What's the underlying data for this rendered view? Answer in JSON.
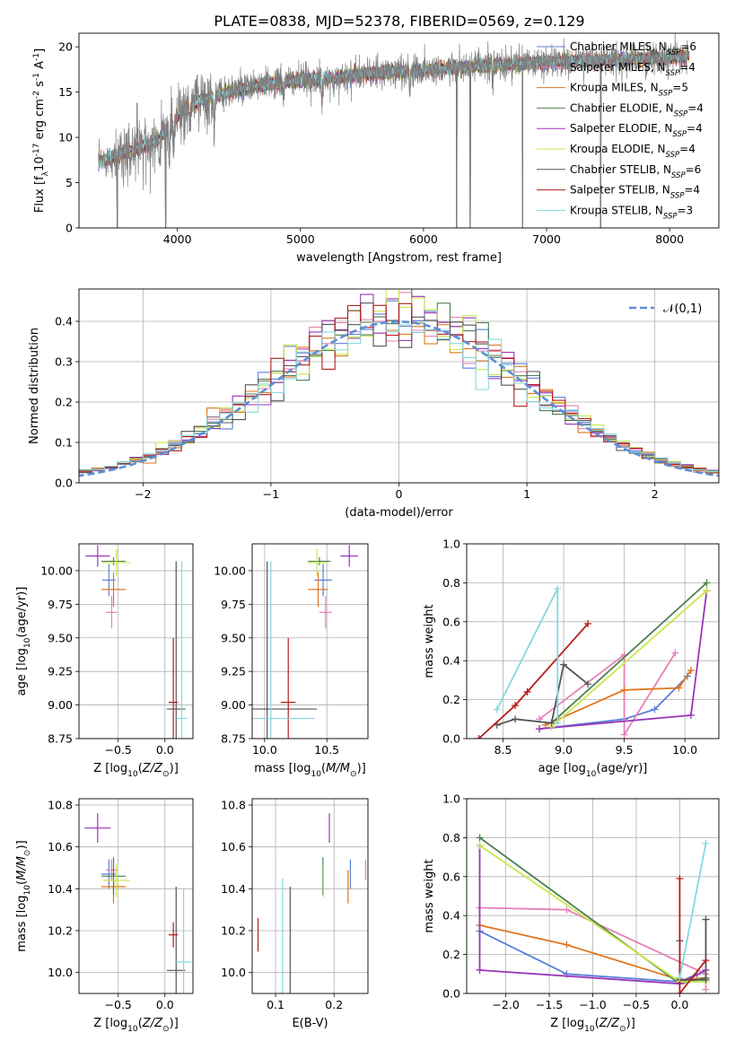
{
  "figure": {
    "title": "PLATE=0838, MJD=52378, FIBERID=0569, z=0.129"
  },
  "colors": {
    "Chabrier MILES": "#5b7fd6",
    "Salpeter MILES": "#e680b8",
    "Kroupa MILES": "#e0761f",
    "Chabrier ELODIE": "#4f7f4f",
    "Salpeter ELODIE": "#9a35b8",
    "Kroupa ELODIE": "#c8e84b",
    "Chabrier STELIB": "#555555",
    "Salpeter STELIB": "#b51c1c",
    "Kroupa STELIB": "#85d8de",
    "spectrum_data": "#7f7f7f",
    "normal_curve": "#5b8fd6"
  },
  "chart_data": [
    {
      "id": "spectrum",
      "type": "line",
      "title": "PLATE=0838, MJD=52378, FIBERID=0569, z=0.129",
      "xlabel": "wavelength [Angstrom, rest frame]",
      "ylabel": "Flux [f$_\\lambda$10$^{-17}$ erg cm$^{-2}$ s$^{-1}$ A$^{-1}$]",
      "xlim": [
        3200,
        8400
      ],
      "ylim": [
        0,
        21.5
      ],
      "xticks": [
        4000,
        5000,
        6000,
        7000,
        8000
      ],
      "yticks": [
        0,
        5,
        10,
        15,
        20
      ],
      "grid": false,
      "legend_position": "top-right",
      "legend": [
        {
          "name": "Chabrier MILES",
          "nssp": "6"
        },
        {
          "name": "Salpeter MILES",
          "nssp": "4"
        },
        {
          "name": "Kroupa MILES",
          "nssp": "5"
        },
        {
          "name": "Chabrier ELODIE",
          "nssp": "4"
        },
        {
          "name": "Salpeter ELODIE",
          "nssp": "4"
        },
        {
          "name": "Kroupa ELODIE",
          "nssp": "4"
        },
        {
          "name": "Chabrier STELIB",
          "nssp": "6"
        },
        {
          "name": "Salpeter STELIB",
          "nssp": "4"
        },
        {
          "name": "Kroupa STELIB",
          "nssp": "3"
        }
      ],
      "continuum": [
        [
          3360,
          7.3
        ],
        [
          3500,
          8.0
        ],
        [
          3700,
          8.8
        ],
        [
          3850,
          9.8
        ],
        [
          3950,
          11.5
        ],
        [
          4050,
          13.0
        ],
        [
          4200,
          14.2
        ],
        [
          4400,
          15.0
        ],
        [
          4700,
          15.8
        ],
        [
          5000,
          16.3
        ],
        [
          5400,
          16.8
        ],
        [
          5800,
          17.3
        ],
        [
          6200,
          17.6
        ],
        [
          6600,
          18.0
        ],
        [
          7000,
          18.3
        ],
        [
          7400,
          18.5
        ],
        [
          7800,
          18.7
        ],
        [
          8150,
          18.9
        ]
      ],
      "absorption_lines": [
        [
          3934,
          4.0
        ],
        [
          3969,
          3.5
        ],
        [
          4102,
          2.0
        ],
        [
          4300,
          3.0
        ],
        [
          4861,
          1.5
        ],
        [
          5175,
          2.5
        ],
        [
          5270,
          1.5
        ],
        [
          5890,
          2.5
        ],
        [
          6563,
          1.5
        ]
      ],
      "masked_drops": [
        3510,
        3905,
        6270,
        6380,
        6805,
        7440
      ]
    },
    {
      "id": "residuals",
      "type": "histogram",
      "xlabel": "(data-model)/error",
      "ylabel": "Normed distribution",
      "xlim": [
        -2.5,
        2.5
      ],
      "ylim": [
        0,
        0.48
      ],
      "xticks": [
        -2,
        -1,
        0,
        1,
        2
      ],
      "yticks": [
        0.0,
        0.1,
        0.2,
        0.3,
        0.4
      ],
      "grid": true,
      "legend_position": "top-right",
      "legend": [
        {
          "name": "$\\mathcal{N}(0,1)$"
        }
      ],
      "bin_width": 0.1
    },
    {
      "id": "age-Z",
      "type": "errorbar",
      "xlabel": "Z [log$_{10}$($Z/Z_\\odot$)]",
      "ylabel": "age  [log$_{10}$($age/yr$)]",
      "xlim": [
        -0.92,
        0.3
      ],
      "ylim": [
        8.75,
        10.2
      ],
      "xticks": [
        -0.5,
        0.0
      ],
      "yticks": [
        8.75,
        9.0,
        9.25,
        9.5,
        9.75,
        10.0
      ],
      "grid": true,
      "points": [
        {
          "series": "Chabrier MILES",
          "x": -0.6,
          "xerr": 0.07,
          "y": 9.93,
          "yerr": 0.12
        },
        {
          "series": "Salpeter MILES",
          "x": -0.57,
          "xerr": 0.06,
          "y": 9.69,
          "yerr": 0.12
        },
        {
          "series": "Kroupa MILES",
          "x": -0.55,
          "xerr": 0.13,
          "y": 9.86,
          "yerr": 0.13
        },
        {
          "series": "Chabrier ELODIE",
          "x": -0.55,
          "xerr": 0.13,
          "y": 10.07,
          "yerr": 0.03
        },
        {
          "series": "Salpeter ELODIE",
          "x": -0.72,
          "xerr": 0.13,
          "y": 10.11,
          "yerr": 0.08
        },
        {
          "series": "Kroupa ELODIE",
          "x": -0.52,
          "xerr": 0.15,
          "y": 10.06,
          "yerr": 0.1
        },
        {
          "series": "Chabrier STELIB",
          "x": 0.12,
          "xerr": 0.1,
          "y": 8.97,
          "yerr": 1.1
        },
        {
          "series": "Salpeter STELIB",
          "x": 0.09,
          "xerr": 0.05,
          "y": 9.02,
          "yerr": 0.48
        },
        {
          "series": "Kroupa STELIB",
          "x": 0.18,
          "xerr": 0.06,
          "y": 8.9,
          "yerr": 1.17
        }
      ]
    },
    {
      "id": "age-mass",
      "type": "errorbar",
      "xlabel": "mass [log$_{10}$($M/M_\\odot$)]",
      "ylabel": "",
      "xlim": [
        9.9,
        10.83
      ],
      "ylim": [
        8.75,
        10.2
      ],
      "xticks": [
        10.0,
        10.5
      ],
      "yticks": [
        8.75,
        9.0,
        9.25,
        9.5,
        9.75,
        10.0
      ],
      "grid": true,
      "points": [
        {
          "series": "Chabrier MILES",
          "x": 10.47,
          "xerr": 0.07,
          "y": 9.93,
          "yerr": 0.12
        },
        {
          "series": "Salpeter MILES",
          "x": 10.49,
          "xerr": 0.05,
          "y": 9.69,
          "yerr": 0.12
        },
        {
          "series": "Kroupa MILES",
          "x": 10.43,
          "xerr": 0.08,
          "y": 9.86,
          "yerr": 0.13
        },
        {
          "series": "Chabrier ELODIE",
          "x": 10.44,
          "xerr": 0.09,
          "y": 10.07,
          "yerr": 0.03
        },
        {
          "series": "Salpeter ELODIE",
          "x": 10.68,
          "xerr": 0.07,
          "y": 10.11,
          "yerr": 0.08
        },
        {
          "series": "Kroupa ELODIE",
          "x": 10.42,
          "xerr": 0.08,
          "y": 10.06,
          "yerr": 0.1
        },
        {
          "series": "Chabrier STELIB",
          "x": 10.02,
          "xerr": 0.4,
          "y": 8.97,
          "yerr": 1.1
        },
        {
          "series": "Salpeter STELIB",
          "x": 10.19,
          "xerr": 0.06,
          "y": 9.02,
          "yerr": 0.48
        },
        {
          "series": "Kroupa STELIB",
          "x": 10.05,
          "xerr": 0.35,
          "y": 8.9,
          "yerr": 1.17
        }
      ]
    },
    {
      "id": "weight-age",
      "type": "line",
      "xlabel": "age  [log$_{10}$($age/yr$)]",
      "ylabel": "mass weight",
      "xlim": [
        8.2,
        10.28
      ],
      "ylim": [
        0.0,
        1.0
      ],
      "xticks": [
        8.5,
        9.0,
        9.5,
        10.0
      ],
      "yticks": [
        0.0,
        0.2,
        0.4,
        0.6,
        0.8,
        1.0
      ],
      "grid": true,
      "series": [
        {
          "name": "Chabrier MILES",
          "x": [
            8.8,
            9.5,
            9.75,
            10.02
          ],
          "y": [
            0.05,
            0.1,
            0.15,
            0.32
          ]
        },
        {
          "name": "Salpeter MILES",
          "x": [
            8.8,
            9.5,
            9.5,
            9.92
          ],
          "y": [
            0.1,
            0.43,
            0.02,
            0.44
          ]
        },
        {
          "name": "Kroupa MILES",
          "x": [
            8.85,
            9.5,
            9.95,
            10.05
          ],
          "y": [
            0.07,
            0.25,
            0.26,
            0.35
          ]
        },
        {
          "name": "Chabrier ELODIE",
          "x": [
            8.9,
            10.18
          ],
          "y": [
            0.08,
            0.8
          ]
        },
        {
          "name": "Salpeter ELODIE",
          "x": [
            8.8,
            10.05,
            10.18
          ],
          "y": [
            0.05,
            0.12,
            0.76
          ]
        },
        {
          "name": "Kroupa ELODIE",
          "x": [
            8.9,
            10.18
          ],
          "y": [
            0.06,
            0.76
          ]
        },
        {
          "name": "Chabrier STELIB",
          "x": [
            8.45,
            8.6,
            8.9,
            9.0,
            9.2
          ],
          "y": [
            0.07,
            0.1,
            0.08,
            0.38,
            0.28
          ]
        },
        {
          "name": "Salpeter STELIB",
          "x": [
            8.3,
            8.6,
            8.7,
            9.2
          ],
          "y": [
            0.0,
            0.17,
            0.24,
            0.59
          ]
        },
        {
          "name": "Kroupa STELIB",
          "x": [
            8.45,
            8.95,
            8.95
          ],
          "y": [
            0.15,
            0.77,
            0.08
          ]
        }
      ]
    },
    {
      "id": "mass-Z",
      "type": "errorbar",
      "xlabel": "Z [log$_{10}$($Z/Z_\\odot$)]",
      "ylabel": "mass [log$_{10}$($M/M_\\odot$)]",
      "xlim": [
        -0.92,
        0.3
      ],
      "ylim": [
        9.9,
        10.83
      ],
      "xticks": [
        -0.5,
        0.0
      ],
      "yticks": [
        10.0,
        10.2,
        10.4,
        10.6,
        10.8
      ],
      "grid": true,
      "points": [
        {
          "series": "Chabrier MILES",
          "x": -0.6,
          "xerr": 0.08,
          "y": 10.47,
          "yerr": 0.07
        },
        {
          "series": "Salpeter MILES",
          "x": -0.57,
          "xerr": 0.06,
          "y": 10.49,
          "yerr": 0.05
        },
        {
          "series": "Kroupa MILES",
          "x": -0.55,
          "xerr": 0.13,
          "y": 10.41,
          "yerr": 0.08
        },
        {
          "series": "Chabrier ELODIE",
          "x": -0.55,
          "xerr": 0.13,
          "y": 10.46,
          "yerr": 0.09
        },
        {
          "series": "Salpeter ELODIE",
          "x": -0.72,
          "xerr": 0.14,
          "y": 10.69,
          "yerr": 0.07
        },
        {
          "series": "Kroupa ELODIE",
          "x": -0.52,
          "xerr": 0.14,
          "y": 10.44,
          "yerr": 0.08
        },
        {
          "series": "Chabrier STELIB",
          "x": 0.12,
          "xerr": 0.1,
          "y": 10.01,
          "yerr": 0.4
        },
        {
          "series": "Salpeter STELIB",
          "x": 0.09,
          "xerr": 0.05,
          "y": 10.18,
          "yerr": 0.06
        },
        {
          "series": "Kroupa STELIB",
          "x": 0.2,
          "xerr": 0.08,
          "y": 10.05,
          "yerr": 0.35
        }
      ]
    },
    {
      "id": "mass-ebv",
      "type": "errorbar",
      "xlabel": "E(B-V)",
      "ylabel": "",
      "xlim": [
        0.06,
        0.258
      ],
      "ylim": [
        9.9,
        10.83
      ],
      "xticks": [
        0.1,
        0.2
      ],
      "yticks": [
        10.0,
        10.2,
        10.4,
        10.6,
        10.8
      ],
      "grid": true,
      "points": [
        {
          "series": "Chabrier MILES",
          "x": 0.228,
          "y": 10.47,
          "yerr": 0.07
        },
        {
          "series": "Salpeter MILES",
          "x": 0.254,
          "y": 10.49,
          "yerr": 0.05
        },
        {
          "series": "Kroupa MILES",
          "x": 0.224,
          "y": 10.41,
          "yerr": 0.08
        },
        {
          "series": "Chabrier ELODIE",
          "x": 0.181,
          "y": 10.46,
          "yerr": 0.09
        },
        {
          "series": "Salpeter ELODIE",
          "x": 0.192,
          "y": 10.69,
          "yerr": 0.07
        },
        {
          "series": "Kroupa ELODIE",
          "x": 0.182,
          "y": 10.44,
          "yerr": 0.08
        },
        {
          "series": "Chabrier STELIB",
          "x": 0.125,
          "y": 10.01,
          "yerr": 0.4
        },
        {
          "series": "Salpeter STELIB",
          "x": 0.07,
          "y": 10.18,
          "yerr": 0.08
        },
        {
          "series": "Kroupa STELIB",
          "x": 0.112,
          "y": 10.05,
          "yerr": 0.4
        }
      ]
    },
    {
      "id": "weight-Z",
      "type": "line",
      "xlabel": "Z [log$_{10}$($Z/Z_\\odot$)]",
      "ylabel": "mass weight",
      "xlim": [
        -2.45,
        0.45
      ],
      "ylim": [
        0.0,
        1.0
      ],
      "xticks": [
        -2.0,
        -1.5,
        -1.0,
        -0.5,
        0.0
      ],
      "yticks": [
        0.0,
        0.2,
        0.4,
        0.6,
        0.8,
        1.0
      ],
      "grid": true,
      "series": [
        {
          "name": "Chabrier MILES",
          "x": [
            -2.3,
            -1.3,
            0.0,
            0.2
          ],
          "y": [
            0.32,
            0.1,
            0.06,
            0.1
          ]
        },
        {
          "name": "Salpeter MILES",
          "x": [
            -2.3,
            -1.3,
            0.3,
            0.3
          ],
          "y": [
            0.44,
            0.43,
            0.1,
            0.02
          ]
        },
        {
          "name": "Kroupa MILES",
          "x": [
            -2.3,
            -1.3,
            0.0,
            0.3
          ],
          "y": [
            0.35,
            0.25,
            0.07,
            0.08
          ]
        },
        {
          "name": "Chabrier ELODIE",
          "x": [
            -2.3,
            0.0,
            0.3
          ],
          "y": [
            0.8,
            0.05,
            0.08
          ]
        },
        {
          "name": "Salpeter ELODIE",
          "x": [
            -2.3,
            -2.3,
            0.0,
            0.3
          ],
          "y": [
            0.76,
            0.12,
            0.05,
            0.12
          ]
        },
        {
          "name": "Kroupa ELODIE",
          "x": [
            -2.3,
            0.0,
            0.3
          ],
          "y": [
            0.76,
            0.06,
            0.06
          ]
        },
        {
          "name": "Chabrier STELIB",
          "x": [
            0.0,
            0.0,
            0.3,
            0.3
          ],
          "y": [
            0.27,
            0.07,
            0.07,
            0.38
          ]
        },
        {
          "name": "Salpeter STELIB",
          "x": [
            0.0,
            0.0,
            0.3
          ],
          "y": [
            0.59,
            0.0,
            0.17
          ]
        },
        {
          "name": "Kroupa STELIB",
          "x": [
            0.0,
            0.3
          ],
          "y": [
            0.08,
            0.77
          ]
        }
      ]
    }
  ]
}
